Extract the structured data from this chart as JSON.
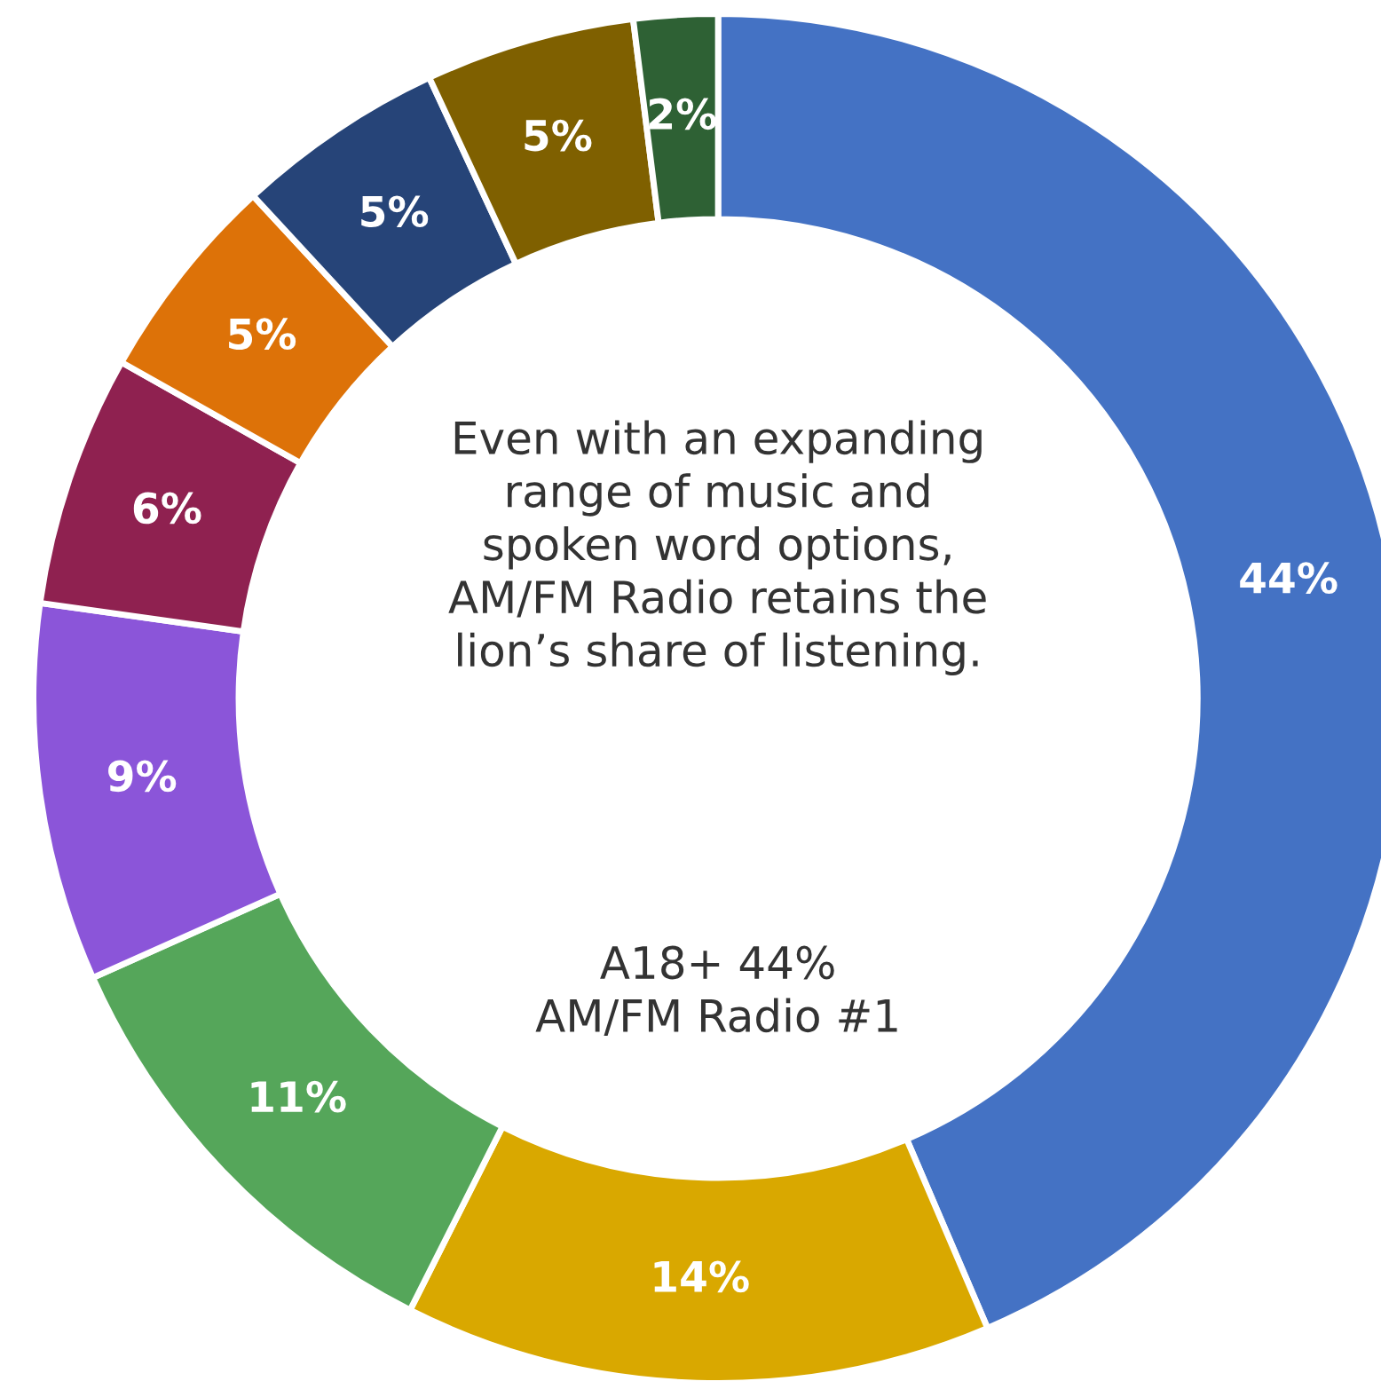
{
  "chart_data": {
    "type": "donut",
    "categories": [
      null,
      null,
      null,
      null,
      null,
      null,
      null,
      null,
      null
    ],
    "values": [
      44,
      14,
      11,
      9,
      6,
      5,
      5,
      5,
      2
    ],
    "colors": [
      "#4472c4",
      "#d9a800",
      "#55a65a",
      "#8b55d9",
      "#8f2150",
      "#dd7208",
      "#264478",
      "#7f6000",
      "#2e6134"
    ],
    "value_labels": [
      "44%",
      "14%",
      "11%",
      "9%",
      "6%",
      "5%",
      "5%",
      "5%",
      "2%"
    ],
    "annotations": [
      "Even with an expanding\nrange of music and\nspoken word options,\nAM/FM Radio retains the\nlion’s share of listening.",
      "A18+ 44%\nAM/FM Radio #1"
    ]
  }
}
